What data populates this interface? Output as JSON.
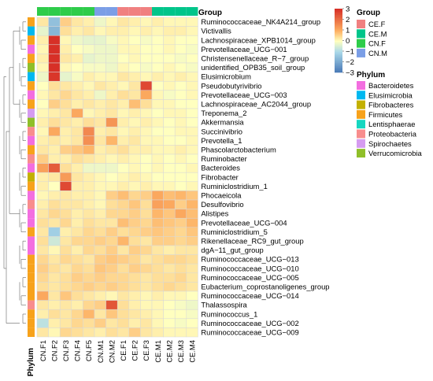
{
  "chart_data": {
    "type": "heatmap",
    "columns": [
      "CN.F1",
      "CN.F2",
      "CN.F3",
      "CN.F4",
      "CN.F5",
      "CN.M1",
      "CN.M2",
      "CE.F1",
      "CE.F2",
      "CE.F3",
      "CE.M1",
      "CE.M2",
      "CE.M3",
      "CE.M4"
    ],
    "column_groups": [
      "CN.F",
      "CN.F",
      "CN.F",
      "CN.F",
      "CN.F",
      "CN.M",
      "CN.M",
      "CE.F",
      "CE.F",
      "CE.F",
      "CE.M",
      "CE.M",
      "CE.M",
      "CE.M"
    ],
    "rows": [
      "Ruminococcaceae_NK4A214_group",
      "Victivallis",
      "Lachnospiraceae_XPB1014_group",
      "Prevotellaceae_UCG−001",
      "Christensenellaceae_R−7_group",
      "unidentified_OPB35_soil_group",
      "Elusimicrobium",
      "Pseudobutyrivibrio",
      "Prevotellaceae_UCG−003",
      "Lachnospiraceae_AC2044_group",
      "Treponema_2",
      "Akkermansia",
      "Succinivibrio",
      "Prevotella_1",
      "Phascolarctobacterium",
      "Ruminobacter",
      "Bacteroides",
      "Fibrobacter",
      "Ruminiclostridium_1",
      "Phocaeicola",
      "Desulfovibrio",
      "Alistipes",
      "Prevotellaceae_UCG−004",
      "Ruminiclostridium_5",
      "Rikenellaceae_RC9_gut_group",
      "dgA−11_gut_group",
      "Ruminococcaceae_UCG−013",
      "Ruminococcaceae_UCG−010",
      "Ruminococcaceae_UCG−005",
      "Eubacterium_coprostanoligenes_group",
      "Ruminococcaceae_UCG−014",
      "Thalassospira",
      "Ruminococcus_1",
      "Ruminococcaceae_UCG−002",
      "Ruminococcaceae_UCG−009"
    ],
    "row_phylum": [
      "Firmicutes",
      "Elusimicrobia",
      "Firmicutes",
      "Bacteroidetes",
      "Firmicutes",
      "Verrucomicrobia",
      "Elusimicrobia",
      "Firmicutes",
      "Bacteroidetes",
      "Firmicutes",
      "Spirochaetes",
      "Verrucomicrobia",
      "Proteobacteria",
      "Bacteroidetes",
      "Firmicutes",
      "Proteobacteria",
      "Bacteroidetes",
      "Fibrobacteres",
      "Firmicutes",
      "Bacteroidetes",
      "Proteobacteria",
      "Bacteroidetes",
      "Bacteroidetes",
      "Firmicutes",
      "Bacteroidetes",
      "Bacteroidetes",
      "Firmicutes",
      "Firmicutes",
      "Firmicutes",
      "Firmicutes",
      "Firmicutes",
      "Proteobacteria",
      "Firmicutes",
      "Firmicutes",
      "Firmicutes"
    ],
    "values": [
      [
        0.3,
        -1.5,
        0.6,
        0.3,
        0.2,
        -0.2,
        0.1,
        0.3,
        0.2,
        0.1,
        0.2,
        0.1,
        0.1,
        0.1
      ],
      [
        -0.3,
        -1.7,
        0.4,
        0.2,
        0.3,
        0.1,
        0.2,
        0.2,
        0.1,
        0.2,
        0.1,
        0.2,
        0.2,
        0.1
      ],
      [
        0.2,
        3.3,
        0.1,
        -0.2,
        -0.3,
        -0.3,
        -0.1,
        0.1,
        0.0,
        -0.1,
        0.0,
        0.1,
        0.0,
        0.0
      ],
      [
        0.1,
        3.2,
        0.2,
        0.0,
        -0.1,
        -0.2,
        -0.2,
        0.1,
        0.1,
        0.0,
        0.0,
        0.1,
        0.0,
        -0.1
      ],
      [
        0.2,
        3.1,
        0.3,
        0.2,
        -0.3,
        -0.2,
        -0.2,
        0.0,
        0.1,
        0.0,
        0.0,
        0.0,
        -0.1,
        0.0
      ],
      [
        0.1,
        3.2,
        0.1,
        0.0,
        -0.1,
        -0.1,
        -0.2,
        0.1,
        0.0,
        -0.1,
        0.0,
        0.1,
        0.0,
        -0.1
      ],
      [
        -0.2,
        2.9,
        -0.3,
        -0.1,
        0.2,
        0.1,
        0.1,
        0.3,
        0.2,
        0.1,
        0.2,
        0.1,
        0.2,
        0.1
      ],
      [
        0.0,
        0.4,
        0.3,
        0.2,
        0.1,
        0.3,
        0.2,
        0.1,
        0.3,
        2.6,
        0.0,
        0.1,
        0.0,
        0.1
      ],
      [
        0.1,
        0.3,
        0.5,
        0.3,
        0.2,
        -0.2,
        0.2,
        0.4,
        0.3,
        1.1,
        0.1,
        -0.1,
        0.0,
        0.1
      ],
      [
        0.0,
        0.6,
        0.4,
        0.2,
        0.3,
        0.2,
        0.3,
        0.2,
        0.8,
        0.4,
        0.1,
        0.1,
        0.0,
        0.0
      ],
      [
        0.1,
        0.2,
        0.3,
        1.1,
        0.1,
        0.2,
        0.3,
        0.1,
        0.2,
        0.1,
        0.0,
        0.1,
        0.1,
        0.0
      ],
      [
        0.2,
        0.4,
        0.3,
        0.2,
        0.4,
        0.3,
        1.4,
        0.2,
        0.1,
        0.2,
        0.1,
        0.0,
        0.1,
        0.0
      ],
      [
        0.1,
        1.1,
        0.2,
        0.3,
        1.6,
        0.2,
        0.3,
        0.1,
        0.2,
        0.1,
        0.0,
        0.0,
        0.1,
        0.1
      ],
      [
        0.2,
        0.3,
        0.2,
        0.3,
        1.5,
        0.3,
        0.9,
        0.2,
        0.3,
        0.1,
        0.1,
        0.0,
        0.0,
        0.1
      ],
      [
        0.3,
        0.2,
        0.6,
        0.7,
        0.9,
        0.2,
        0.3,
        0.4,
        0.2,
        0.2,
        0.1,
        0.1,
        0.2,
        0.1
      ],
      [
        0.6,
        0.2,
        0.2,
        0.4,
        0.3,
        0.2,
        0.1,
        0.2,
        0.1,
        0.0,
        0.1,
        0.0,
        0.1,
        0.0
      ],
      [
        1.2,
        2.3,
        0.4,
        0.2,
        -0.2,
        -0.2,
        -0.2,
        0.0,
        0.1,
        0.0,
        0.1,
        0.0,
        0.0,
        0.1
      ],
      [
        0.2,
        0.3,
        1.3,
        0.3,
        0.2,
        0.1,
        0.0,
        0.1,
        0.2,
        0.1,
        0.0,
        0.0,
        0.0,
        0.0
      ],
      [
        0.2,
        0.0,
        2.6,
        0.2,
        0.2,
        0.1,
        0.1,
        0.2,
        0.1,
        0.2,
        0.1,
        0.1,
        0.0,
        0.1
      ],
      [
        0.1,
        0.2,
        0.3,
        0.2,
        0.2,
        0.1,
        0.6,
        0.8,
        0.5,
        0.6,
        1.1,
        0.8,
        0.9,
        0.7
      ],
      [
        0.2,
        0.4,
        0.3,
        0.3,
        0.2,
        0.1,
        0.4,
        0.5,
        0.7,
        0.4,
        1.2,
        1.1,
        0.6,
        0.9
      ],
      [
        0.3,
        0.5,
        0.4,
        0.2,
        0.3,
        0.2,
        0.5,
        0.5,
        0.6,
        0.4,
        0.9,
        0.7,
        1.1,
        0.8
      ],
      [
        0.4,
        0.3,
        0.5,
        0.2,
        0.4,
        0.3,
        0.3,
        0.8,
        0.6,
        0.5,
        0.8,
        0.7,
        0.6,
        0.9
      ],
      [
        0.3,
        -1.2,
        0.2,
        0.3,
        0.5,
        0.4,
        0.6,
        0.4,
        0.5,
        0.6,
        0.7,
        0.6,
        0.5,
        0.7
      ],
      [
        0.4,
        -0.6,
        0.3,
        0.5,
        0.5,
        0.6,
        0.5,
        0.9,
        0.4,
        0.3,
        0.6,
        0.6,
        0.5,
        0.6
      ],
      [
        0.3,
        0.1,
        0.4,
        0.2,
        0.5,
        0.4,
        0.6,
        0.3,
        0.6,
        0.5,
        0.3,
        0.2,
        0.3,
        0.3
      ],
      [
        0.5,
        0.3,
        0.5,
        0.4,
        0.3,
        0.6,
        0.7,
        0.6,
        0.5,
        0.3,
        0.4,
        0.5,
        0.5,
        0.4
      ],
      [
        0.6,
        0.4,
        0.3,
        0.5,
        0.4,
        0.7,
        0.6,
        0.4,
        0.6,
        0.5,
        0.4,
        0.3,
        0.4,
        0.3
      ],
      [
        0.5,
        0.3,
        0.4,
        0.6,
        0.5,
        0.6,
        0.5,
        0.5,
        0.4,
        0.3,
        0.4,
        0.4,
        0.5,
        0.3
      ],
      [
        0.4,
        0.3,
        0.4,
        0.5,
        0.6,
        0.5,
        0.6,
        0.5,
        0.4,
        0.3,
        0.4,
        0.5,
        0.4,
        0.3
      ],
      [
        1.1,
        0.3,
        0.7,
        0.4,
        0.3,
        0.2,
        0.1,
        0.3,
        0.2,
        0.1,
        0.2,
        0.1,
        0.1,
        0.0
      ],
      [
        0.3,
        0.2,
        0.3,
        0.2,
        0.5,
        0.6,
        2.4,
        0.4,
        0.2,
        0.1,
        0.1,
        0.0,
        -0.1,
        -0.2
      ],
      [
        0.2,
        0.4,
        0.3,
        0.5,
        0.9,
        0.3,
        0.7,
        0.4,
        0.3,
        0.2,
        0.1,
        0.0,
        0.0,
        -0.1
      ],
      [
        -0.8,
        0.2,
        0.3,
        0.5,
        0.4,
        0.6,
        0.3,
        0.4,
        0.2,
        0.3,
        0.1,
        0.0,
        -0.1,
        0.0
      ],
      [
        0.3,
        0.1,
        0.5,
        0.4,
        0.3,
        0.2,
        0.4,
        0.3,
        0.6,
        0.3,
        0.2,
        0.1,
        0.1,
        0.1
      ]
    ],
    "color_scale": {
      "min": -3,
      "max": 3,
      "ticks": [
        3,
        2,
        1,
        0,
        -1,
        -2,
        -3
      ],
      "tick_labels": [
        "3",
        "2",
        "1",
        "0",
        "−1",
        "−2",
        "−3"
      ],
      "low_color": "#4575b4",
      "mid_color": "#ffffbf",
      "high_color": "#d73027"
    },
    "column_annotation_title": "Group",
    "row_annotation_title": "Phylum",
    "group_legend": [
      {
        "label": "CE.F",
        "color": "#f08080"
      },
      {
        "label": "CE.M",
        "color": "#00c58a"
      },
      {
        "label": "CN.F",
        "color": "#2ecc4a"
      },
      {
        "label": "CN.M",
        "color": "#7b9ee6"
      }
    ],
    "phylum_legend": [
      {
        "label": "Bacteroidetes",
        "color": "#f36ee0"
      },
      {
        "label": "Elusimicrobia",
        "color": "#00b8f0"
      },
      {
        "label": "Fibrobacteres",
        "color": "#c3b000"
      },
      {
        "label": "Firmicutes",
        "color": "#f7a21b"
      },
      {
        "label": "Lentisphaerae",
        "color": "#16d6c0"
      },
      {
        "label": "Proteobacteria",
        "color": "#f88d8d"
      },
      {
        "label": "Spirochaetes",
        "color": "#d59bf0"
      },
      {
        "label": "Verrucomicrobia",
        "color": "#8fbf29"
      }
    ],
    "grid": true
  }
}
